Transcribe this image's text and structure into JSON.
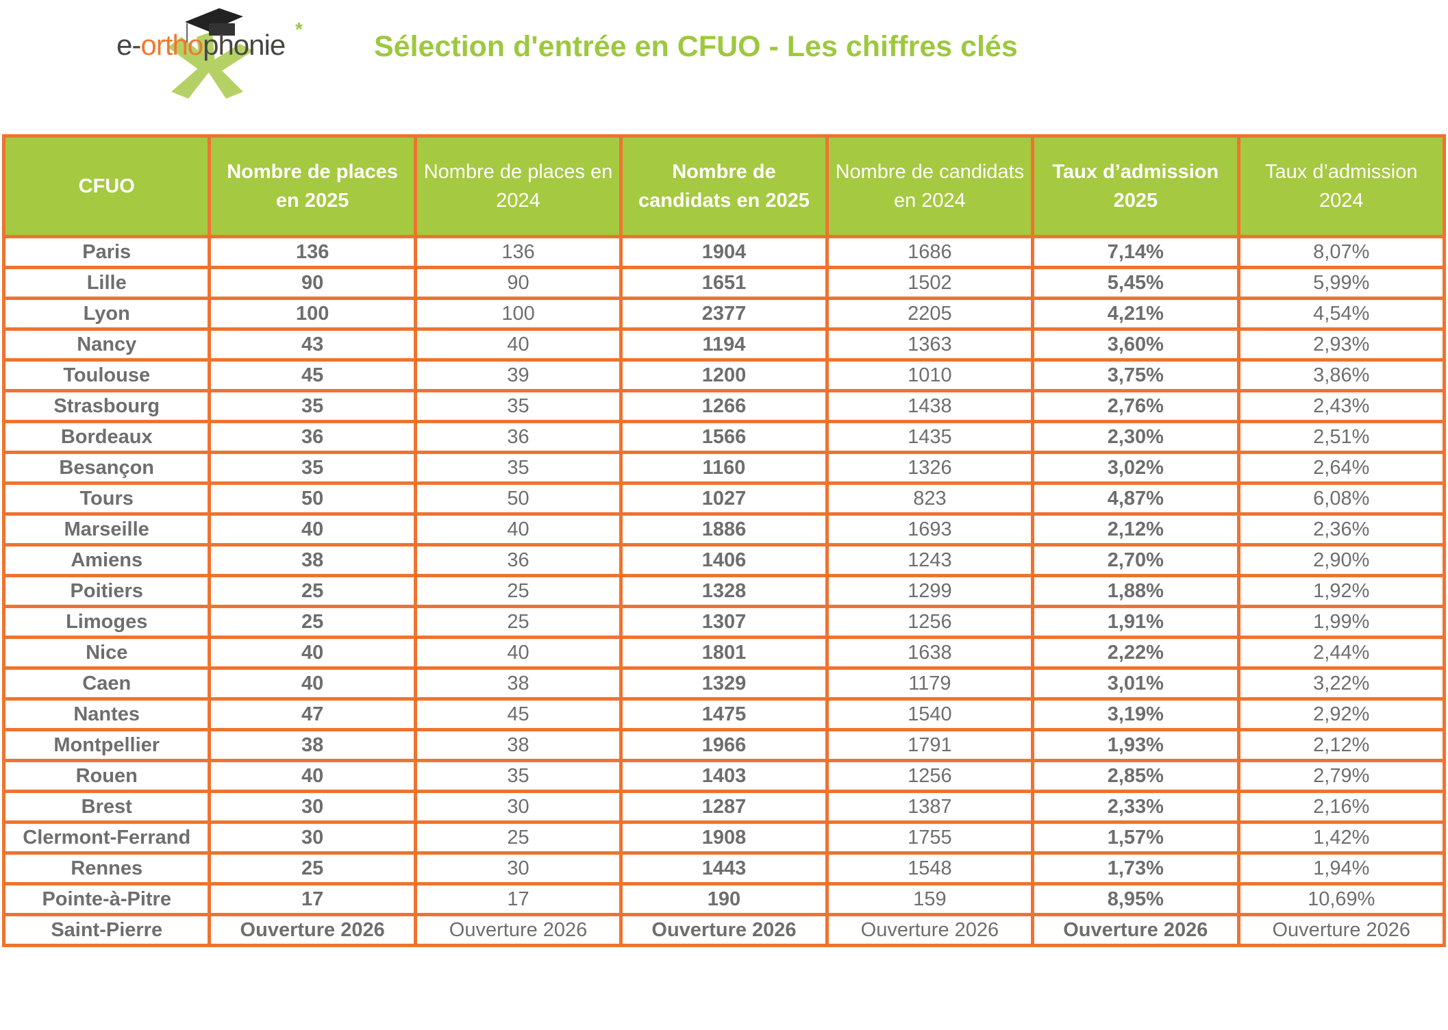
{
  "logo": {
    "part1": "e-",
    "part2": "ortho",
    "part3": "phonie"
  },
  "title": "Sélection d'entrée en CFUO - Les chiffres clés",
  "colors": {
    "header_bg": "#a5c940",
    "border": "#ee7330",
    "title": "#9dc83f",
    "text": "#6e6e6e"
  },
  "columns": [
    "CFUO",
    "Nombre de places en 2025",
    "Nombre de places en 2024",
    "Nombre de candidats en 2025",
    "Nombre de candidats en 2024",
    "Taux d’admission 2025",
    "Taux d’admission 2024"
  ],
  "rows": [
    [
      "Paris",
      "136",
      "136",
      "1904",
      "1686",
      "7,14%",
      "8,07%"
    ],
    [
      "Lille",
      "90",
      "90",
      "1651",
      "1502",
      "5,45%",
      "5,99%"
    ],
    [
      "Lyon",
      "100",
      "100",
      "2377",
      "2205",
      "4,21%",
      "4,54%"
    ],
    [
      "Nancy",
      "43",
      "40",
      "1194",
      "1363",
      "3,60%",
      "2,93%"
    ],
    [
      "Toulouse",
      "45",
      "39",
      "1200",
      "1010",
      "3,75%",
      "3,86%"
    ],
    [
      "Strasbourg",
      "35",
      "35",
      "1266",
      "1438",
      "2,76%",
      "2,43%"
    ],
    [
      "Bordeaux",
      "36",
      "36",
      "1566",
      "1435",
      "2,30%",
      "2,51%"
    ],
    [
      "Besançon",
      "35",
      "35",
      "1160",
      "1326",
      "3,02%",
      "2,64%"
    ],
    [
      "Tours",
      "50",
      "50",
      "1027",
      "823",
      "4,87%",
      "6,08%"
    ],
    [
      "Marseille",
      "40",
      "40",
      "1886",
      "1693",
      "2,12%",
      "2,36%"
    ],
    [
      "Amiens",
      "38",
      "36",
      "1406",
      "1243",
      "2,70%",
      "2,90%"
    ],
    [
      "Poitiers",
      "25",
      "25",
      "1328",
      "1299",
      "1,88%",
      "1,92%"
    ],
    [
      "Limoges",
      "25",
      "25",
      "1307",
      "1256",
      "1,91%",
      "1,99%"
    ],
    [
      "Nice",
      "40",
      "40",
      "1801",
      "1638",
      "2,22%",
      "2,44%"
    ],
    [
      "Caen",
      "40",
      "38",
      "1329",
      "1179",
      "3,01%",
      "3,22%"
    ],
    [
      "Nantes",
      "47",
      "45",
      "1475",
      "1540",
      "3,19%",
      "2,92%"
    ],
    [
      "Montpellier",
      "38",
      "38",
      "1966",
      "1791",
      "1,93%",
      "2,12%"
    ],
    [
      "Rouen",
      "40",
      "35",
      "1403",
      "1256",
      "2,85%",
      "2,79%"
    ],
    [
      "Brest",
      "30",
      "30",
      "1287",
      "1387",
      "2,33%",
      "2,16%"
    ],
    [
      "Clermont-Ferrand",
      "30",
      "25",
      "1908",
      "1755",
      "1,57%",
      "1,42%"
    ],
    [
      "Rennes",
      "25",
      "30",
      "1443",
      "1548",
      "1,73%",
      "1,94%"
    ],
    [
      "Pointe-à-Pitre",
      "17",
      "17",
      "190",
      "159",
      "8,95%",
      "10,69%"
    ],
    [
      "Saint-Pierre",
      "Ouverture 2026",
      "Ouverture 2026",
      "Ouverture 2026",
      "Ouverture 2026",
      "Ouverture 2026",
      "Ouverture 2026"
    ]
  ]
}
